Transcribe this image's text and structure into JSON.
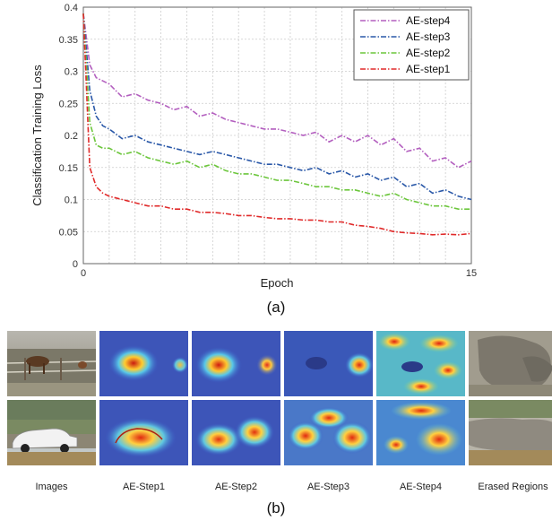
{
  "chart_data": {
    "type": "line",
    "title": "",
    "xlabel": "Epoch",
    "ylabel": "Classification Training Loss",
    "xlim": [
      0,
      15
    ],
    "ylim": [
      0,
      0.4
    ],
    "x_ticks": [
      "0",
      "15"
    ],
    "y_ticks": [
      "0",
      "0.05",
      "0.1",
      "0.15",
      "0.2",
      "0.25",
      "0.3",
      "0.35",
      "0.4"
    ],
    "grid": true,
    "legend_position": "top-right",
    "series": [
      {
        "name": "AE-step4",
        "color": "#b35fbf",
        "x": [
          0,
          0.25,
          0.5,
          0.75,
          1,
          1.5,
          2,
          2.5,
          3,
          3.5,
          4,
          4.5,
          5,
          5.5,
          6,
          6.5,
          7,
          7.5,
          8,
          8.5,
          9,
          9.5,
          10,
          10.5,
          11,
          11.5,
          12,
          12.5,
          13,
          13.5,
          14,
          14.5,
          15
        ],
        "values": [
          0.39,
          0.31,
          0.29,
          0.285,
          0.28,
          0.26,
          0.265,
          0.255,
          0.25,
          0.24,
          0.245,
          0.23,
          0.235,
          0.225,
          0.22,
          0.215,
          0.21,
          0.21,
          0.205,
          0.2,
          0.205,
          0.19,
          0.2,
          0.19,
          0.2,
          0.185,
          0.195,
          0.175,
          0.18,
          0.16,
          0.165,
          0.15,
          0.16
        ]
      },
      {
        "name": "AE-step3",
        "color": "#2a58a8",
        "x": [
          0,
          0.25,
          0.5,
          0.75,
          1,
          1.5,
          2,
          2.5,
          3,
          3.5,
          4,
          4.5,
          5,
          5.5,
          6,
          6.5,
          7,
          7.5,
          8,
          8.5,
          9,
          9.5,
          10,
          10.5,
          11,
          11.5,
          12,
          12.5,
          13,
          13.5,
          14,
          14.5,
          15
        ],
        "values": [
          0.39,
          0.27,
          0.23,
          0.215,
          0.21,
          0.195,
          0.2,
          0.19,
          0.185,
          0.18,
          0.175,
          0.17,
          0.175,
          0.17,
          0.165,
          0.16,
          0.155,
          0.155,
          0.15,
          0.145,
          0.15,
          0.14,
          0.145,
          0.135,
          0.14,
          0.13,
          0.135,
          0.12,
          0.125,
          0.11,
          0.115,
          0.105,
          0.1
        ]
      },
      {
        "name": "AE-step2",
        "color": "#6cc63c",
        "x": [
          0,
          0.25,
          0.5,
          0.75,
          1,
          1.5,
          2,
          2.5,
          3,
          3.5,
          4,
          4.5,
          5,
          5.5,
          6,
          6.5,
          7,
          7.5,
          8,
          8.5,
          9,
          9.5,
          10,
          10.5,
          11,
          11.5,
          12,
          12.5,
          13,
          13.5,
          14,
          14.5,
          15
        ],
        "values": [
          0.39,
          0.22,
          0.185,
          0.18,
          0.18,
          0.17,
          0.175,
          0.165,
          0.16,
          0.155,
          0.16,
          0.15,
          0.155,
          0.145,
          0.14,
          0.14,
          0.135,
          0.13,
          0.13,
          0.125,
          0.12,
          0.12,
          0.115,
          0.115,
          0.11,
          0.105,
          0.11,
          0.1,
          0.095,
          0.09,
          0.09,
          0.085,
          0.085
        ]
      },
      {
        "name": "AE-step1",
        "color": "#e02a2a",
        "x": [
          0,
          0.25,
          0.5,
          0.75,
          1,
          1.5,
          2,
          2.5,
          3,
          3.5,
          4,
          4.5,
          5,
          5.5,
          6,
          6.5,
          7,
          7.5,
          8,
          8.5,
          9,
          9.5,
          10,
          10.5,
          11,
          11.5,
          12,
          12.5,
          13,
          13.5,
          14,
          14.5,
          15
        ],
        "values": [
          0.39,
          0.15,
          0.12,
          0.11,
          0.105,
          0.1,
          0.095,
          0.09,
          0.09,
          0.085,
          0.085,
          0.08,
          0.08,
          0.078,
          0.075,
          0.075,
          0.072,
          0.07,
          0.07,
          0.068,
          0.068,
          0.065,
          0.065,
          0.06,
          0.058,
          0.055,
          0.05,
          0.048,
          0.047,
          0.045,
          0.046,
          0.045,
          0.047
        ]
      }
    ]
  },
  "captions": {
    "panel_a": "(a)",
    "panel_b": "(b)"
  },
  "grid": {
    "column_labels": [
      "Images",
      "AE-Step1",
      "AE-Step2",
      "AE-Step3",
      "AE-Step4",
      "Erased Regions"
    ],
    "rows": [
      "horses",
      "car"
    ]
  }
}
